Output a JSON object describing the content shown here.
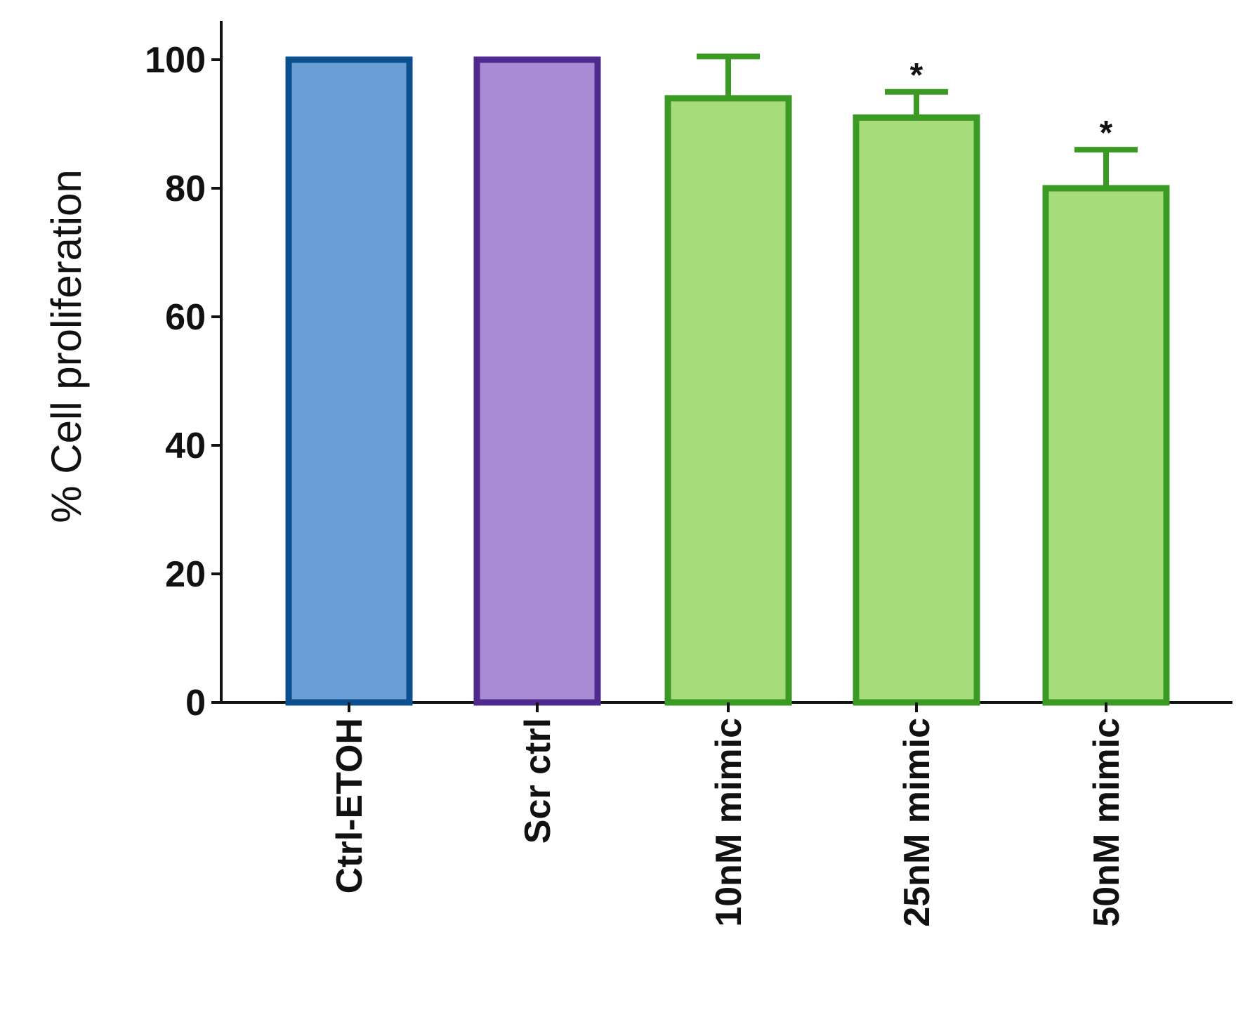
{
  "chart_data": {
    "type": "bar",
    "ylabel": "% Cell proliferation",
    "xlabel": "",
    "ylim": [
      0,
      100
    ],
    "yticks": [
      0,
      20,
      40,
      60,
      80,
      100
    ],
    "grid": false,
    "categories": [
      "Ctrl-ETOH",
      "Scr ctrl",
      "10nM mimic",
      "25nM mimic",
      "50nM mimic"
    ],
    "values": [
      100,
      100,
      94,
      91,
      80
    ],
    "error_plus": [
      0,
      0,
      6.5,
      4,
      6
    ],
    "significance": [
      "",
      "",
      "",
      "*",
      "*"
    ],
    "fill_colors": [
      "#6a9fd6",
      "#a98ad4",
      "#a6dc7a",
      "#a6dc7a",
      "#a6dc7a"
    ],
    "edge_colors": [
      "#0b4f8f",
      "#4e2a8e",
      "#3a9a24",
      "#3a9a24",
      "#3a9a24"
    ]
  }
}
